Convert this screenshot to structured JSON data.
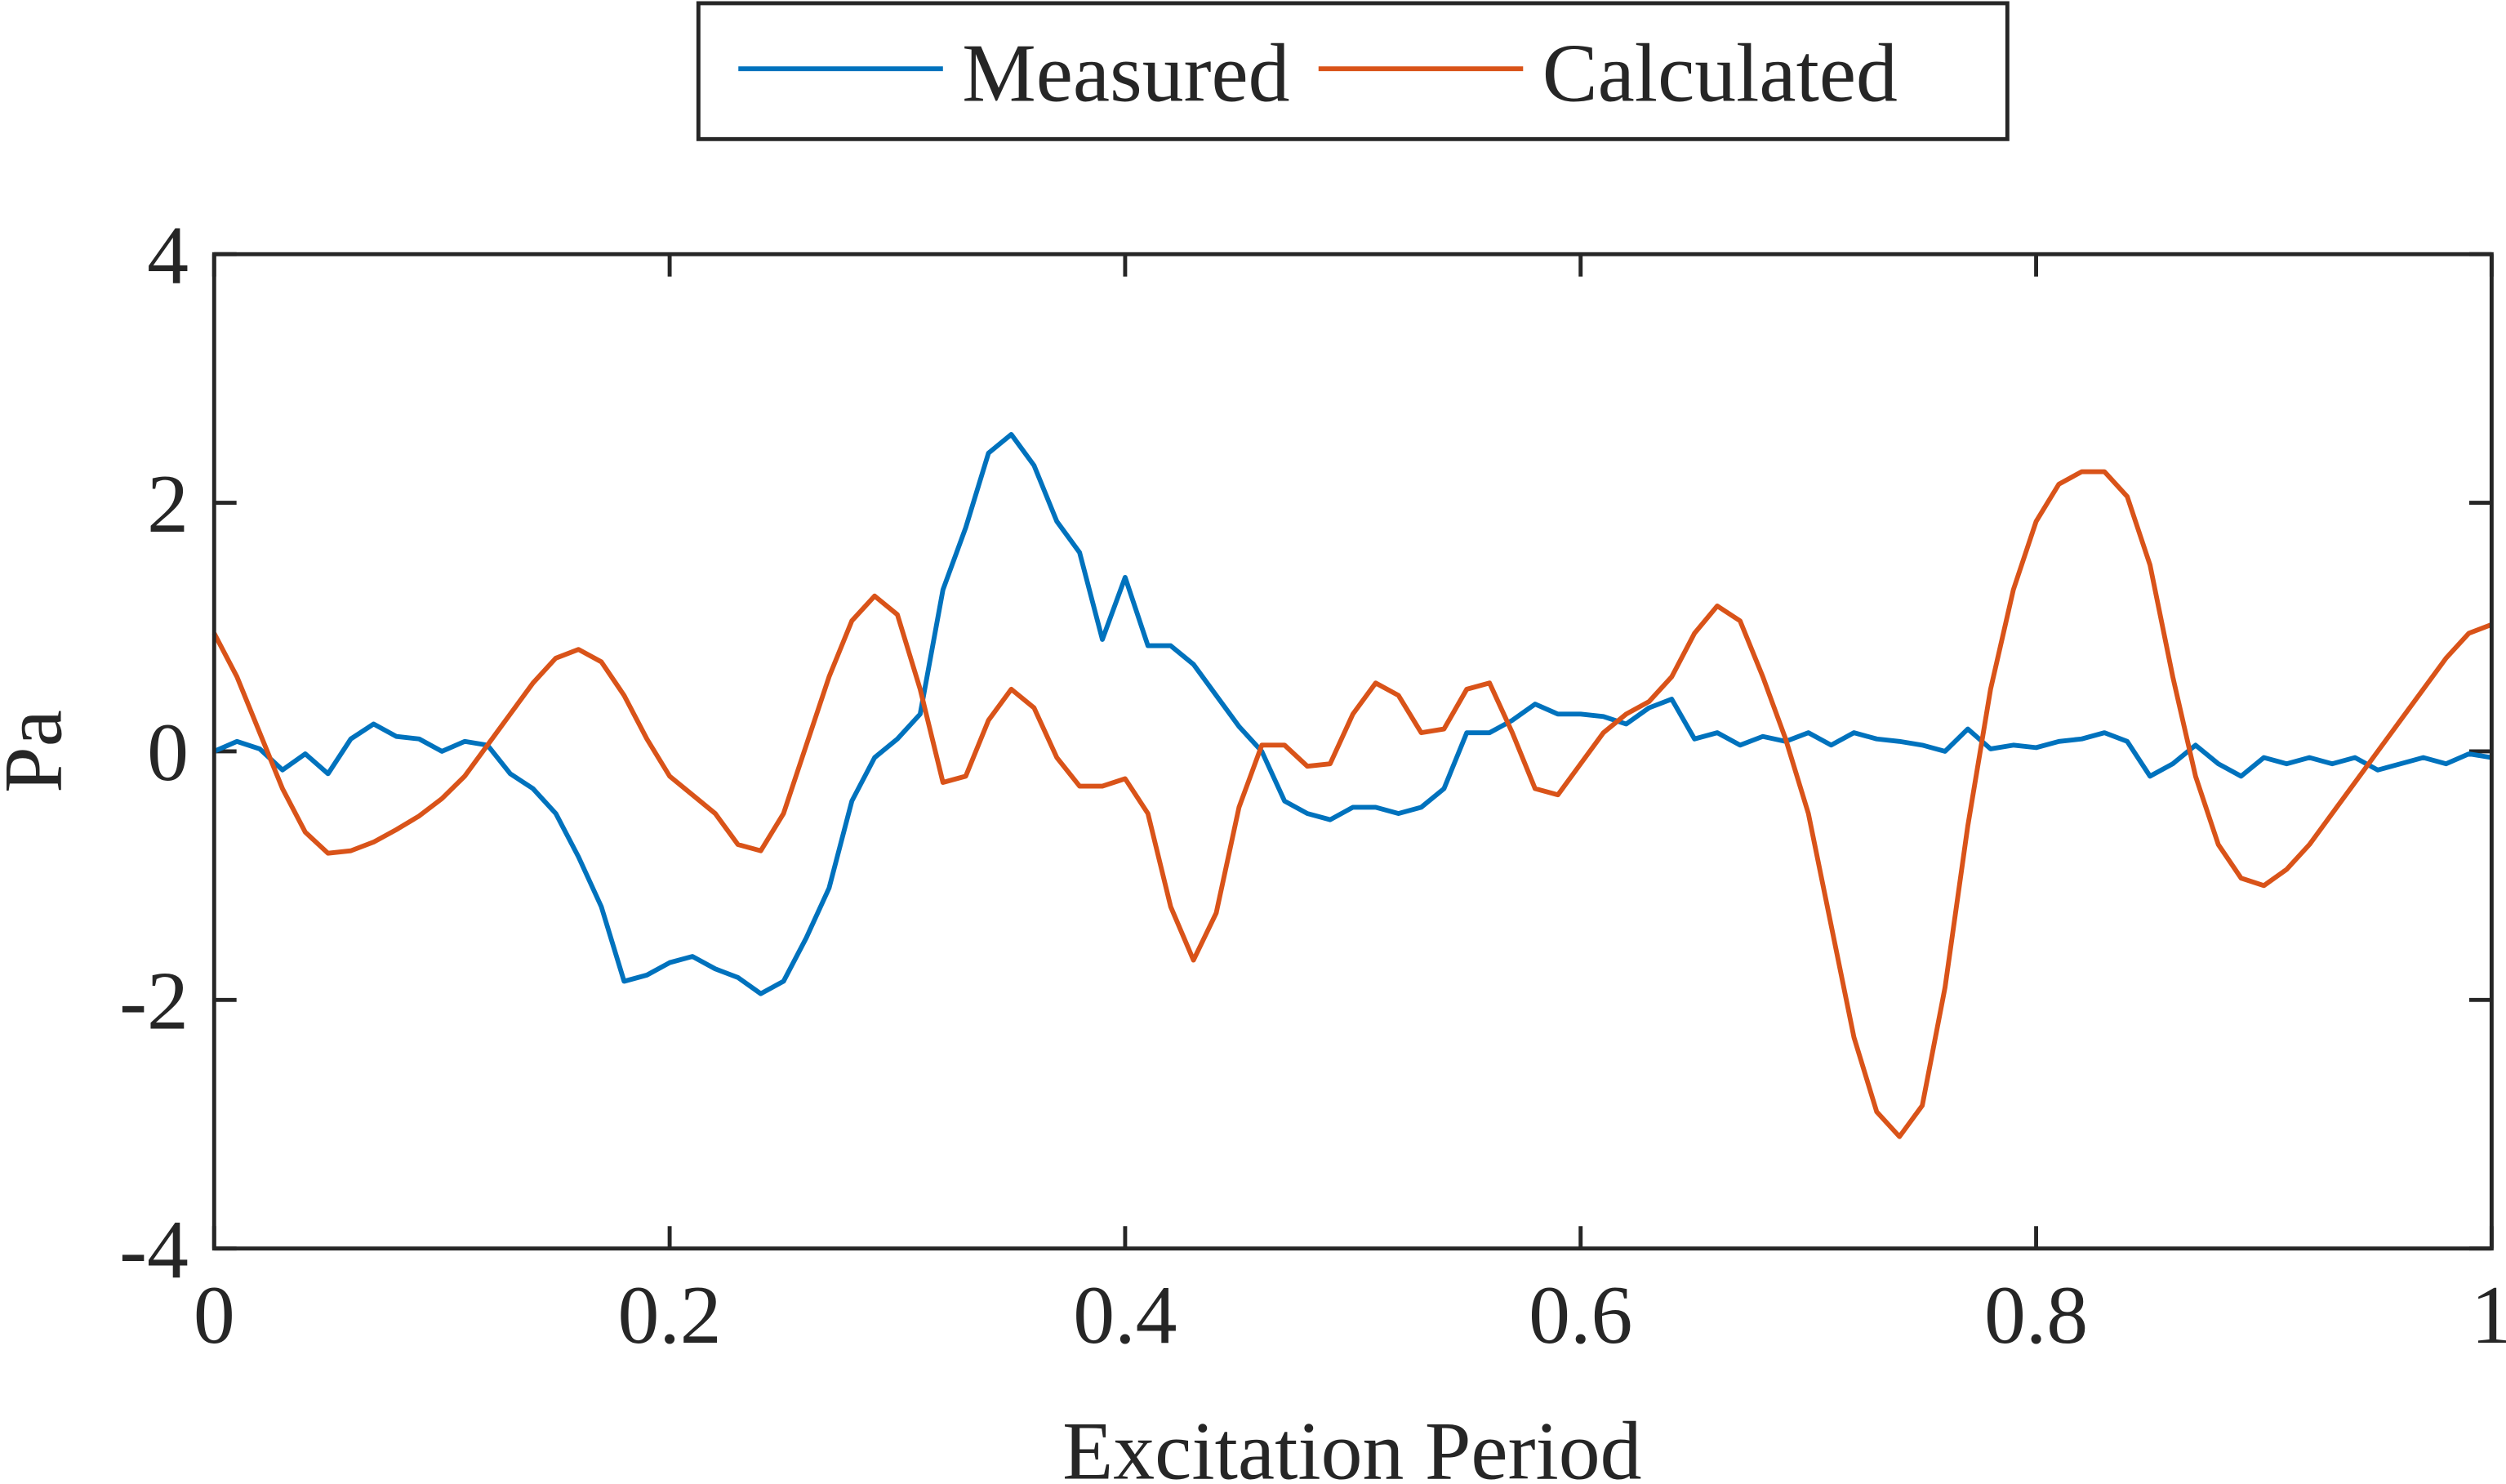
{
  "chart_data": {
    "type": "line",
    "x_label": "Excitation Period",
    "y_label": "Pa",
    "x": [
      0,
      0.01,
      0.02,
      0.03,
      0.04,
      0.05,
      0.06,
      0.07,
      0.08,
      0.09,
      0.1,
      0.11,
      0.12,
      0.13,
      0.14,
      0.15,
      0.16,
      0.17,
      0.18,
      0.19,
      0.2,
      0.21,
      0.22,
      0.23,
      0.24,
      0.25,
      0.26,
      0.27,
      0.28,
      0.29,
      0.3,
      0.31,
      0.32,
      0.33,
      0.34,
      0.35,
      0.36,
      0.37,
      0.38,
      0.39,
      0.4,
      0.41,
      0.42,
      0.43,
      0.44,
      0.45,
      0.46,
      0.47,
      0.48,
      0.49,
      0.5,
      0.51,
      0.52,
      0.53,
      0.54,
      0.55,
      0.56,
      0.57,
      0.58,
      0.59,
      0.6,
      0.61,
      0.62,
      0.63,
      0.64,
      0.65,
      0.66,
      0.67,
      0.68,
      0.69,
      0.7,
      0.71,
      0.72,
      0.73,
      0.74,
      0.75,
      0.76,
      0.77,
      0.78,
      0.79,
      0.8,
      0.81,
      0.82,
      0.83,
      0.84,
      0.85,
      0.86,
      0.87,
      0.88,
      0.89,
      0.9,
      0.91,
      0.92,
      0.93,
      0.94,
      0.95,
      0.96,
      0.97,
      0.98,
      0.99,
      1
    ],
    "series": [
      {
        "name": "Measured",
        "color": "#0072BD",
        "values": [
          0,
          0.08,
          0.02,
          -0.15,
          -0.02,
          -0.18,
          0.1,
          0.22,
          0.12,
          0.1,
          0,
          0.08,
          0.05,
          -0.18,
          -0.3,
          -0.5,
          -0.85,
          -1.25,
          -1.85,
          -1.8,
          -1.7,
          -1.65,
          -1.75,
          -1.82,
          -1.95,
          -1.85,
          -1.5,
          -1.1,
          -0.4,
          -0.05,
          0.1,
          0.3,
          1.3,
          1.8,
          2.4,
          2.55,
          2.3,
          1.85,
          1.6,
          0.9,
          1.4,
          0.85,
          0.85,
          0.7,
          0.45,
          0.2,
          0,
          -0.4,
          -0.5,
          -0.55,
          -0.45,
          -0.45,
          -0.5,
          -0.45,
          -0.3,
          0.15,
          0.15,
          0.25,
          0.38,
          0.3,
          0.3,
          0.28,
          0.22,
          0.35,
          0.42,
          0.1,
          0.15,
          0.05,
          0.12,
          0.08,
          0.15,
          0.05,
          0.15,
          0.1,
          0.08,
          0.05,
          0,
          0.18,
          0.02,
          0.05,
          0.03,
          0.08,
          0.1,
          0.15,
          0.08,
          -0.2,
          -0.1,
          0.05,
          -0.1,
          -0.2,
          -0.05,
          -0.1,
          -0.05,
          -0.1,
          -0.05,
          -0.15,
          -0.1,
          -0.05,
          -0.1,
          -0.02,
          -0.05
        ]
      },
      {
        "name": "Calculated",
        "color": "#D95319",
        "values": [
          0.95,
          0.6,
          0.15,
          -0.3,
          -0.65,
          -0.82,
          -0.8,
          -0.73,
          -0.63,
          -0.52,
          -0.38,
          -0.2,
          0.05,
          0.3,
          0.55,
          0.75,
          0.82,
          0.72,
          0.45,
          0.1,
          -0.2,
          -0.35,
          -0.5,
          -0.75,
          -0.8,
          -0.5,
          0.05,
          0.6,
          1.05,
          1.25,
          1.1,
          0.5,
          -0.25,
          -0.2,
          0.25,
          0.5,
          0.35,
          -0.05,
          -0.28,
          -0.28,
          -0.22,
          -0.5,
          -1.25,
          -1.68,
          -1.3,
          -0.45,
          0.05,
          0.05,
          -0.12,
          -0.1,
          0.3,
          0.55,
          0.45,
          0.15,
          0.18,
          0.5,
          0.55,
          0.15,
          -0.3,
          -0.35,
          -0.1,
          0.15,
          0.3,
          0.4,
          0.6,
          0.95,
          1.17,
          1.05,
          0.6,
          0.1,
          -0.5,
          -1.4,
          -2.3,
          -2.9,
          -3.1,
          -2.85,
          -1.9,
          -0.6,
          0.5,
          1.3,
          1.85,
          2.15,
          2.25,
          2.25,
          2.05,
          1.5,
          0.6,
          -0.2,
          -0.75,
          -1.02,
          -1.08,
          -0.95,
          -0.75,
          -0.5,
          -0.25,
          0,
          0.25,
          0.5,
          0.75,
          0.95,
          1.02
        ]
      }
    ],
    "xlim": [
      0,
      1
    ],
    "xticks": [
      0,
      0.2,
      0.4,
      0.6,
      0.8,
      1
    ],
    "ylim": [
      -4,
      4
    ],
    "yticks": [
      -4,
      -2,
      0,
      2,
      4
    ],
    "grid": false,
    "legend": "top-outside"
  }
}
